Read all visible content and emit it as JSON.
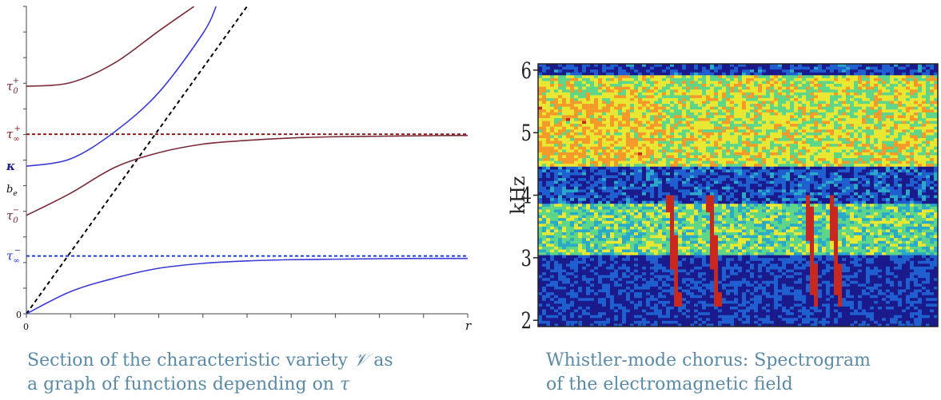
{
  "colors": {
    "red_curve": "#7a2a36",
    "red_dash": "#9a1a1a",
    "blue_curve": "#3a3ad8",
    "blue_dash": "#1f3cd8",
    "black_dash": "#000000",
    "caption": "#5b8aa6"
  },
  "left_caption": {
    "line1_pre": "Section of the characteristic variety ",
    "line1_symbol": "𝒱",
    "line1_post": " as",
    "line2_pre": "a graph of functions depending on ",
    "line2_symbol": "τ"
  },
  "right_caption": {
    "line1": "Whistler-mode chorus: Spectrogram",
    "line2": "of the electromagnetic field"
  },
  "chart_data": [
    {
      "type": "line",
      "title": "",
      "xlabel": "r",
      "ylabel": "",
      "x_tick_labels": [
        "0"
      ],
      "y_tick_labels": [
        {
          "label": "0",
          "value": 0
        },
        {
          "label": "τ∞⁻",
          "value": 2.35,
          "color": "#1f3cd8"
        },
        {
          "label": "τ0⁻",
          "value": 4.0,
          "color": "#7a2a36"
        },
        {
          "label": "bₑ",
          "value": 5.1
        },
        {
          "label": "κ",
          "value": 6.0,
          "color": "#1f1f8a"
        },
        {
          "label": "τ∞⁺",
          "value": 7.3,
          "color": "#9a1a1a"
        },
        {
          "label": "τ0⁺",
          "value": 9.25,
          "color": "#7a2a36"
        }
      ],
      "xlim": [
        0,
        10
      ],
      "ylim": [
        0,
        12.5
      ],
      "grid": false,
      "series": [
        {
          "style": "dashed",
          "color": "#9a1a1a",
          "x": [
            0,
            10
          ],
          "y": [
            7.3,
            7.3
          ]
        },
        {
          "style": "dashed",
          "color": "#1f3cd8",
          "x": [
            0,
            10
          ],
          "y": [
            2.35,
            2.35
          ]
        },
        {
          "style": "dashed",
          "color": "#000000",
          "x": [
            0,
            5
          ],
          "y": [
            0,
            12.5
          ]
        },
        {
          "style": "solid",
          "color": "#7a2a36",
          "x": [
            0,
            1,
            2,
            3,
            3.8
          ],
          "y": [
            9.25,
            9.4,
            10.2,
            11.5,
            12.5
          ]
        },
        {
          "style": "solid",
          "color": "#3a3ad8",
          "x": [
            0,
            1,
            2,
            3,
            4,
            4.3
          ],
          "y": [
            6.0,
            6.3,
            7.4,
            9.0,
            11.4,
            12.5
          ]
        },
        {
          "style": "solid",
          "color": "#7a2a36",
          "x": [
            0,
            1,
            2,
            3,
            4,
            5,
            6,
            7,
            8,
            9,
            10
          ],
          "y": [
            4.0,
            4.9,
            5.95,
            6.55,
            6.9,
            7.05,
            7.15,
            7.2,
            7.22,
            7.24,
            7.25
          ]
        },
        {
          "style": "solid",
          "color": "#3a3ad8",
          "x": [
            0,
            1,
            2,
            3,
            4,
            5,
            6,
            7,
            8,
            9,
            10
          ],
          "y": [
            0,
            0.9,
            1.45,
            1.85,
            2.05,
            2.15,
            2.2,
            2.22,
            2.24,
            2.25,
            2.25
          ]
        }
      ]
    },
    {
      "type": "heatmap",
      "title": "",
      "xlabel": "",
      "ylabel": "kHz",
      "ylim": [
        1.9,
        6.1
      ],
      "y_ticks": [
        2,
        3,
        4,
        5,
        6
      ],
      "grid": false,
      "colormap": [
        "#1a1a8c",
        "#1f5fd0",
        "#2aa9c9",
        "#5ed68a",
        "#e8e832",
        "#f59a2a",
        "#c8281e"
      ],
      "bands": [
        {
          "y_from": 4.45,
          "y_to": 5.9,
          "level": 0.62
        },
        {
          "y_from": 3.05,
          "y_to": 3.85,
          "level": 0.5
        },
        {
          "y_from": 3.85,
          "y_to": 4.45,
          "level": 0.18
        },
        {
          "y_from": 1.95,
          "y_to": 3.05,
          "level": 0.12
        }
      ],
      "vertical_streaks_x_fraction": [
        0.345,
        0.445,
        0.69,
        0.75
      ],
      "description_note": ""
    }
  ]
}
